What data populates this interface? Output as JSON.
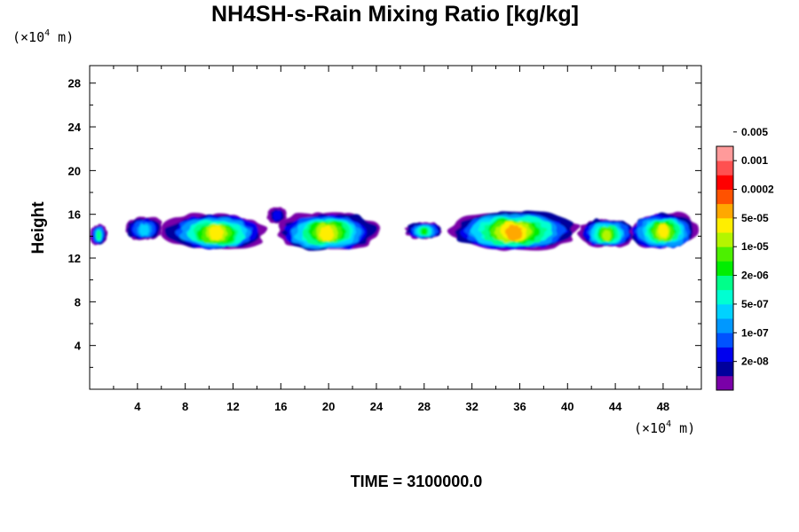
{
  "chart_data": {
    "type": "heatmap",
    "title": "NH4SH-s-Rain Mixing Ratio [kg/kg]",
    "ylabel": "Height",
    "xlabel": "",
    "x_unit_prefix": "(×10",
    "x_unit_exp": "4",
    "x_unit_suffix": " m)",
    "y_unit_prefix": "(×10",
    "y_unit_exp": "4",
    "y_unit_suffix": " m)",
    "xlim": [
      0,
      51.2
    ],
    "ylim": [
      0,
      29.6
    ],
    "x_ticks": [
      4,
      8,
      12,
      16,
      20,
      24,
      28,
      32,
      36,
      40,
      44,
      48
    ],
    "y_ticks": [
      4,
      8,
      12,
      16,
      20,
      24,
      28
    ],
    "x_tick_labels": [
      "4",
      "8",
      "12",
      "16",
      "20",
      "24",
      "28",
      "32",
      "36",
      "40",
      "44",
      "48"
    ],
    "y_tick_labels": [
      "4",
      "8",
      "12",
      "16",
      "20",
      "24",
      "28"
    ],
    "colorbar": {
      "colors": [
        "#7a00a8",
        "#00009c",
        "#0000ee",
        "#0052ff",
        "#0098ff",
        "#00d2ff",
        "#00ffd2",
        "#00ff8a",
        "#00ee00",
        "#4cf000",
        "#b4f500",
        "#ffee00",
        "#ffa800",
        "#ff5200",
        "#ff0000",
        "#ff5050",
        "#ff9a9a"
      ],
      "labels": [
        "2e-08",
        "1e-07",
        "5e-07",
        "2e-06",
        "1e-05",
        "5e-05",
        "0.0002",
        "0.001",
        "0.005"
      ],
      "label_at_boundary": [
        2,
        4,
        6,
        8,
        10,
        12,
        14,
        16,
        18
      ]
    },
    "cloud_segments": [
      {
        "x0": 0.0,
        "x1": 1.5,
        "y_bottom": 13.3,
        "y_top": 15.0,
        "peak_level": 7
      },
      {
        "x0": 2.8,
        "x1": 6.3,
        "y_bottom": 13.7,
        "y_top": 15.7,
        "peak_level": 5
      },
      {
        "x0": 5.8,
        "x1": 15.3,
        "y_bottom": 12.9,
        "y_top": 15.9,
        "peak_level": 11
      },
      {
        "x0": 14.8,
        "x1": 16.6,
        "y_bottom": 15.2,
        "y_top": 16.6,
        "peak_level": 2
      },
      {
        "x0": 15.2,
        "x1": 24.5,
        "y_bottom": 12.8,
        "y_top": 16.0,
        "peak_level": 11
      },
      {
        "x0": 26.3,
        "x1": 29.7,
        "y_bottom": 13.8,
        "y_top": 15.2,
        "peak_level": 8
      },
      {
        "x0": 29.5,
        "x1": 41.5,
        "y_bottom": 12.9,
        "y_top": 16.2,
        "peak_level": 12
      },
      {
        "x0": 40.8,
        "x1": 45.8,
        "y_bottom": 13.1,
        "y_top": 15.5,
        "peak_level": 10
      },
      {
        "x0": 44.8,
        "x1": 51.2,
        "y_bottom": 13.0,
        "y_top": 16.0,
        "peak_level": 11
      }
    ],
    "grid": false,
    "legend_placement": "right (colorbar)"
  },
  "footer": {
    "time_label": "TIME = 3100000.0"
  }
}
